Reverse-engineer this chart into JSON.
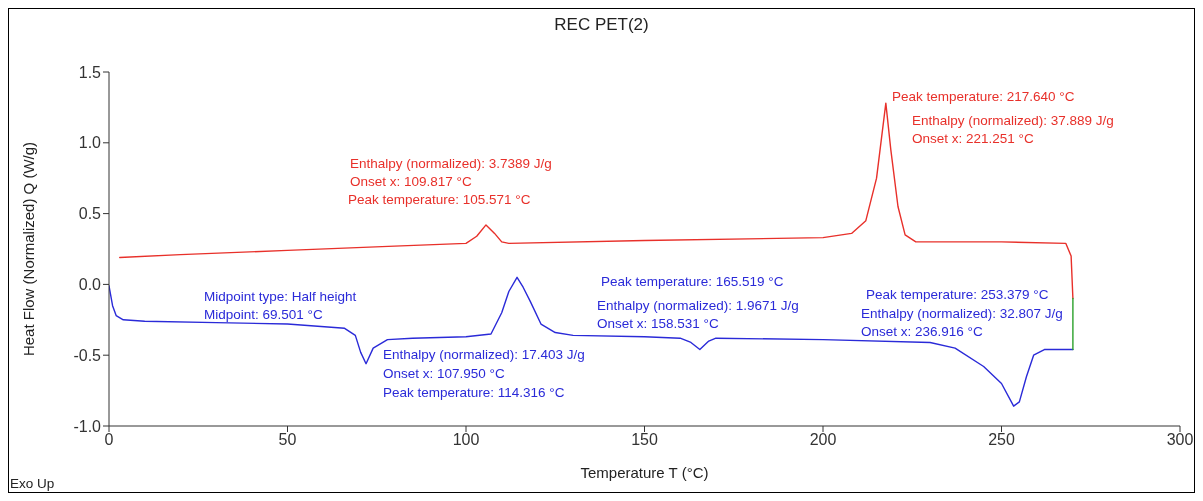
{
  "chart_data": {
    "type": "line",
    "title": "REC PET(2)",
    "xlabel": "Temperature T (°C)",
    "ylabel": "Heat Flow (Normalized) Q (W/g)",
    "xlim": [
      0,
      300
    ],
    "xticks": [
      0,
      50,
      100,
      150,
      200,
      250,
      300
    ],
    "ylim": [
      -1.0,
      1.5
    ],
    "yticks": [
      {
        "value": -1,
        "label": "-1.0"
      },
      {
        "value": -0.5,
        "label": "-0.5"
      },
      {
        "value": 0,
        "label": "0.0"
      },
      {
        "value": 0.5,
        "label": "0.5"
      },
      {
        "value": 1,
        "label": "1.0"
      },
      {
        "value": 1.5,
        "label": "1.5"
      }
    ],
    "grid": false,
    "marker": "none",
    "line_style": "solid",
    "series": [
      {
        "color": "#e8302a",
        "x": [
          3,
          20,
          50,
          80,
          100,
          103,
          105.6,
          108,
          110,
          112,
          150,
          200,
          208,
          212,
          215,
          217.6,
          219,
          221,
          223,
          226,
          230,
          250,
          268,
          269.5,
          270
        ],
        "values": [
          0.19,
          0.21,
          0.24,
          0.27,
          0.29,
          0.34,
          0.42,
          0.36,
          0.3,
          0.29,
          0.31,
          0.33,
          0.36,
          0.45,
          0.75,
          1.28,
          0.95,
          0.55,
          0.35,
          0.3,
          0.3,
          0.3,
          0.29,
          0.2,
          -0.1
        ]
      },
      {
        "color": "#2a2ad8",
        "x": [
          0,
          1,
          2,
          4,
          10,
          30,
          50,
          66,
          69,
          70.5,
          72,
          74,
          78,
          85,
          100,
          107,
          110,
          112,
          114.3,
          116,
          118,
          121,
          125,
          130,
          150,
          160,
          163,
          165.5,
          168,
          170,
          200,
          230,
          237,
          245,
          250,
          253.4,
          255,
          257,
          259,
          262,
          270
        ],
        "values": [
          -0.01,
          -0.15,
          -0.22,
          -0.25,
          -0.26,
          -0.27,
          -0.28,
          -0.31,
          -0.36,
          -0.48,
          -0.56,
          -0.45,
          -0.39,
          -0.38,
          -0.37,
          -0.35,
          -0.2,
          -0.05,
          0.05,
          -0.02,
          -0.12,
          -0.28,
          -0.34,
          -0.36,
          -0.37,
          -0.38,
          -0.41,
          -0.46,
          -0.4,
          -0.38,
          -0.39,
          -0.41,
          -0.45,
          -0.58,
          -0.7,
          -0.86,
          -0.83,
          -0.65,
          -0.5,
          -0.46,
          -0.46
        ]
      },
      {
        "color": "#2aa02a",
        "x": [
          270,
          270
        ],
        "values": [
          -0.1,
          -0.46
        ]
      }
    ],
    "annotations": [
      "Enthalpy (normalized): 3.7389 J/g",
      "Onset x: 109.817 °C",
      "Peak temperature: 105.571 °C",
      "Peak temperature: 217.640 °C",
      "Enthalpy (normalized): 37.889 J/g",
      "Onset x: 221.251 °C",
      "Midpoint type: Half height",
      "Midpoint: 69.501 °C",
      "Enthalpy (normalized): 17.403 J/g",
      "Onset x: 107.950 °C",
      "Peak temperature: 114.316 °C",
      "Peak temperature: 165.519 °C",
      "Enthalpy (normalized): 1.9671 J/g",
      "Onset x: 158.531 °C",
      "Peak temperature: 253.379 °C",
      "Enthalpy (normalized): 32.807 J/g",
      "Onset x: 236.916 °C",
      "Exo Up"
    ]
  }
}
